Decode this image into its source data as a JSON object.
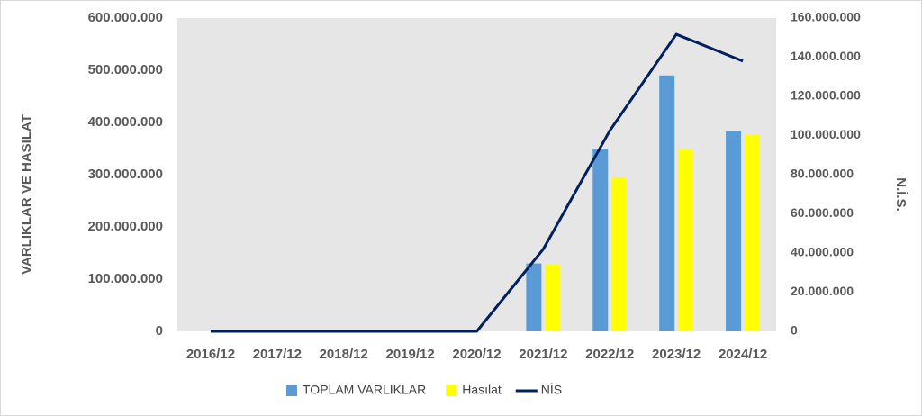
{
  "chart_data": {
    "type": "bar-line",
    "categories": [
      "2016/12",
      "2017/12",
      "2018/12",
      "2019/12",
      "2020/12",
      "2021/12",
      "2022/12",
      "2023/12",
      "2024/12"
    ],
    "series": [
      {
        "name": "TOPLAM VARLIKLAR",
        "type": "bar",
        "color": "#5b9bd5",
        "values": [
          0,
          0,
          0,
          0,
          0,
          130000000,
          350000000,
          490000000,
          383000000
        ]
      },
      {
        "name": "Hasılat",
        "type": "bar",
        "color": "#ffff00",
        "values": [
          0,
          0,
          0,
          0,
          0,
          128000000,
          295000000,
          348000000,
          376000000
        ]
      },
      {
        "name": "NİS",
        "type": "line",
        "axis": "y2",
        "color": "#002060",
        "values": [
          0,
          0,
          0,
          0,
          0,
          42000000,
          102500000,
          151700000,
          138000000
        ]
      }
    ],
    "ylabel": "VARLIKLAR VE HASILAT",
    "y2label": "N.İ.S.",
    "ylim": [
      0,
      600000000
    ],
    "yticks": [
      0,
      {
        "value": 100000000,
        "label": "100.000.000"
      },
      {
        "value": 200000000,
        "label": "200.000.000"
      },
      {
        "value": 300000000,
        "label": "300.000.000"
      },
      {
        "value": 400000000,
        "label": "400.000.000"
      },
      {
        "value": 500000000,
        "label": "500.000.000"
      },
      {
        "value": 600000000,
        "label": "600.000.000"
      }
    ],
    "y2lim": [
      0,
      160000000
    ],
    "y2ticks": [
      0,
      {
        "value": 20000000,
        "label": "20.000.000"
      },
      {
        "value": 40000000,
        "label": "40.000.000"
      },
      {
        "value": 60000000,
        "label": "60.000.000"
      },
      {
        "value": 80000000,
        "label": "80.000.000"
      },
      {
        "value": 100000000,
        "label": "100.000.000"
      },
      {
        "value": 120000000,
        "label": "120.000.000"
      },
      {
        "value": 140000000,
        "label": "140.000.000"
      },
      {
        "value": 160000000,
        "label": "160.000.000"
      }
    ],
    "legend": "bottom"
  }
}
